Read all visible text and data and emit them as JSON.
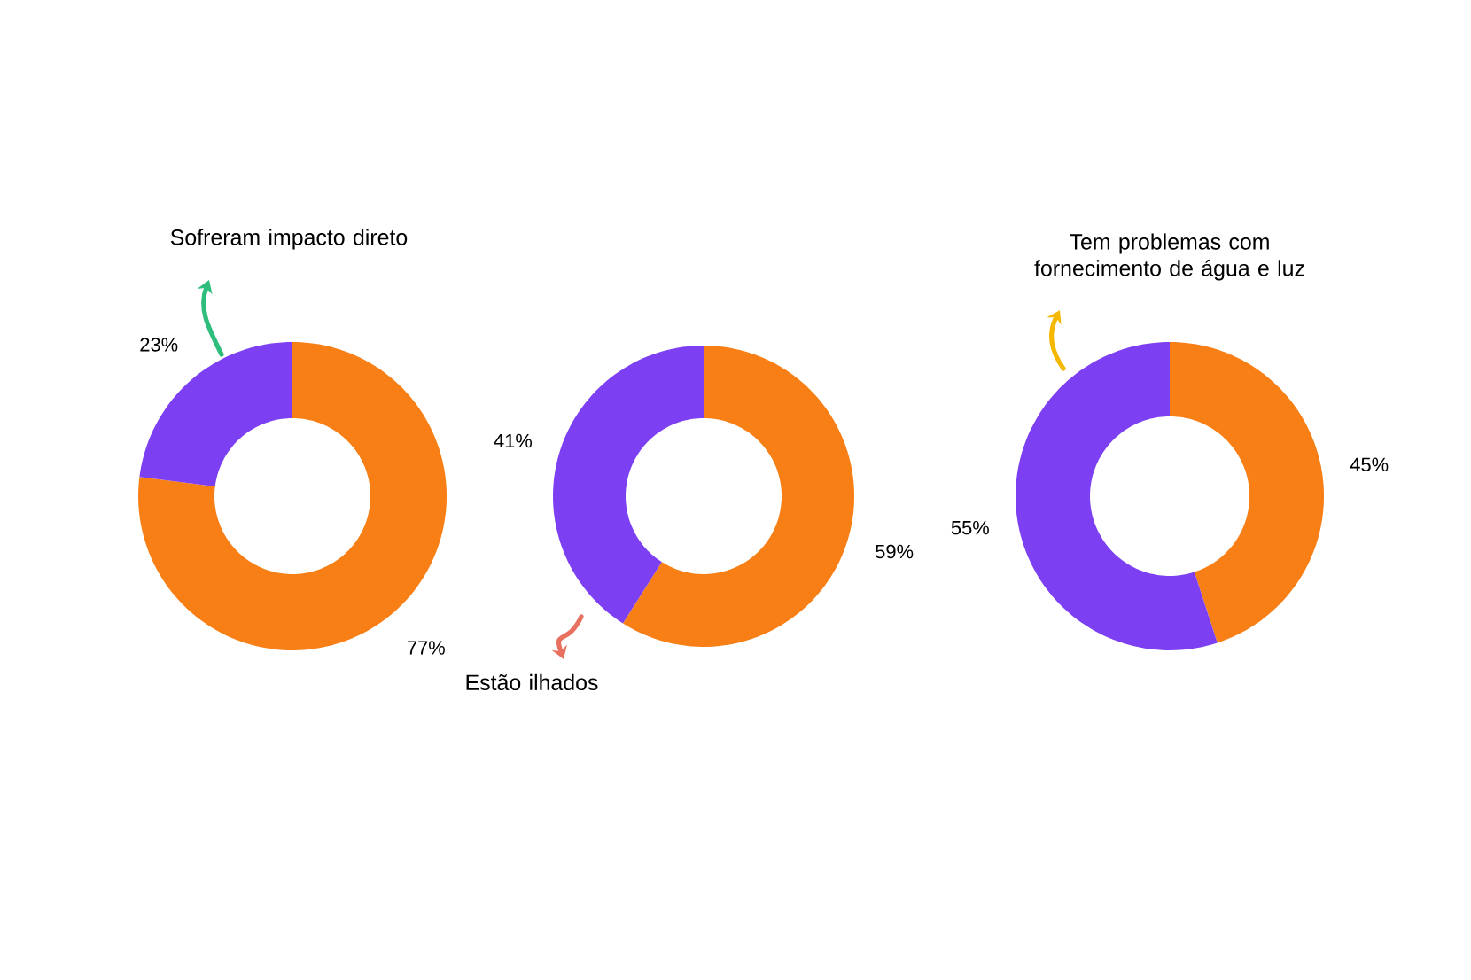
{
  "chart_data": [
    {
      "type": "donut",
      "categories": [
        null,
        "Sofreram impacto direto"
      ],
      "values": [
        77,
        23
      ],
      "colors": [
        "#f77f16",
        "#7c3ff2"
      ],
      "value_labels": [
        "77%",
        "23%"
      ]
    },
    {
      "type": "donut",
      "categories": [
        null,
        "Estão ilhados"
      ],
      "values": [
        59,
        41
      ],
      "colors": [
        "#f77f16",
        "#7c3ff2"
      ],
      "value_labels": [
        "59%",
        "41%"
      ]
    },
    {
      "type": "donut",
      "categories": [
        null,
        "Tem problemas com fornecimento de água e luz"
      ],
      "values": [
        45,
        55
      ],
      "colors": [
        "#f77f16",
        "#7c3ff2"
      ],
      "value_labels": [
        "45%",
        "55%"
      ]
    }
  ]
}
